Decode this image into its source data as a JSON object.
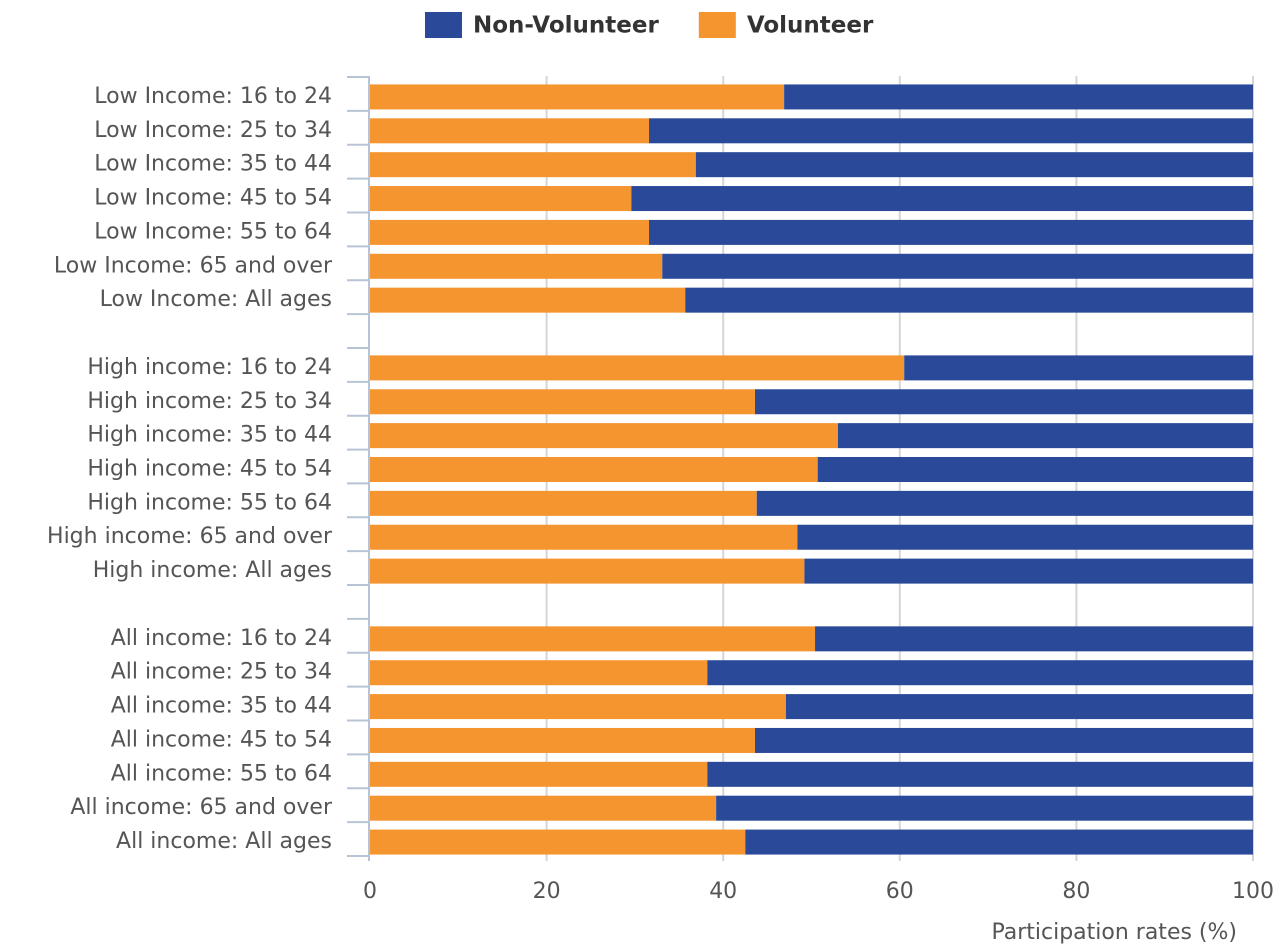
{
  "chart_data": {
    "type": "stacked-bar-horizontal",
    "x_label": "Participation rates (%)",
    "categories": [
      "Low Income: 16 to 24",
      "Low Income: 25 to 34",
      "Low Income: 35 to 44",
      "Low Income: 45 to 54",
      "Low Income: 55 to 64",
      "Low Income: 65 and over",
      "Low Income: All ages",
      null,
      "High income: 16 to 24",
      "High income: 25 to 34",
      "High income: 35 to 44",
      "High income: 45 to 54",
      "High income: 55 to 64",
      "High income: 65 and over",
      "High income: All ages",
      null,
      "All income: 16 to 24",
      "All income: 25 to 34",
      "All income: 35 to 44",
      "All income: 45 to 54",
      "All income: 55 to 64",
      "All income: 65 and over",
      "All income: All ages"
    ],
    "series": [
      {
        "name": "Non-Volunteer",
        "color": "#2a4a99",
        "values": [
          53.1,
          68.4,
          63.1,
          70.4,
          68.4,
          66.9,
          64.3,
          null,
          39.5,
          56.4,
          47.0,
          49.3,
          56.2,
          51.6,
          50.8,
          null,
          49.6,
          61.8,
          52.9,
          56.4,
          61.8,
          60.8,
          57.5
        ]
      },
      {
        "name": "Volunteer",
        "color": "#f5952f",
        "values": [
          46.9,
          31.6,
          36.9,
          29.6,
          31.6,
          33.1,
          35.7,
          null,
          60.5,
          43.6,
          53.0,
          50.7,
          43.8,
          48.4,
          49.2,
          null,
          50.4,
          38.2,
          47.1,
          43.6,
          38.2,
          39.2,
          42.5
        ]
      }
    ],
    "xlim": [
      0,
      100
    ],
    "xticks": [
      0,
      20,
      40,
      60,
      80,
      100
    ],
    "grid": true,
    "legend": "top"
  }
}
